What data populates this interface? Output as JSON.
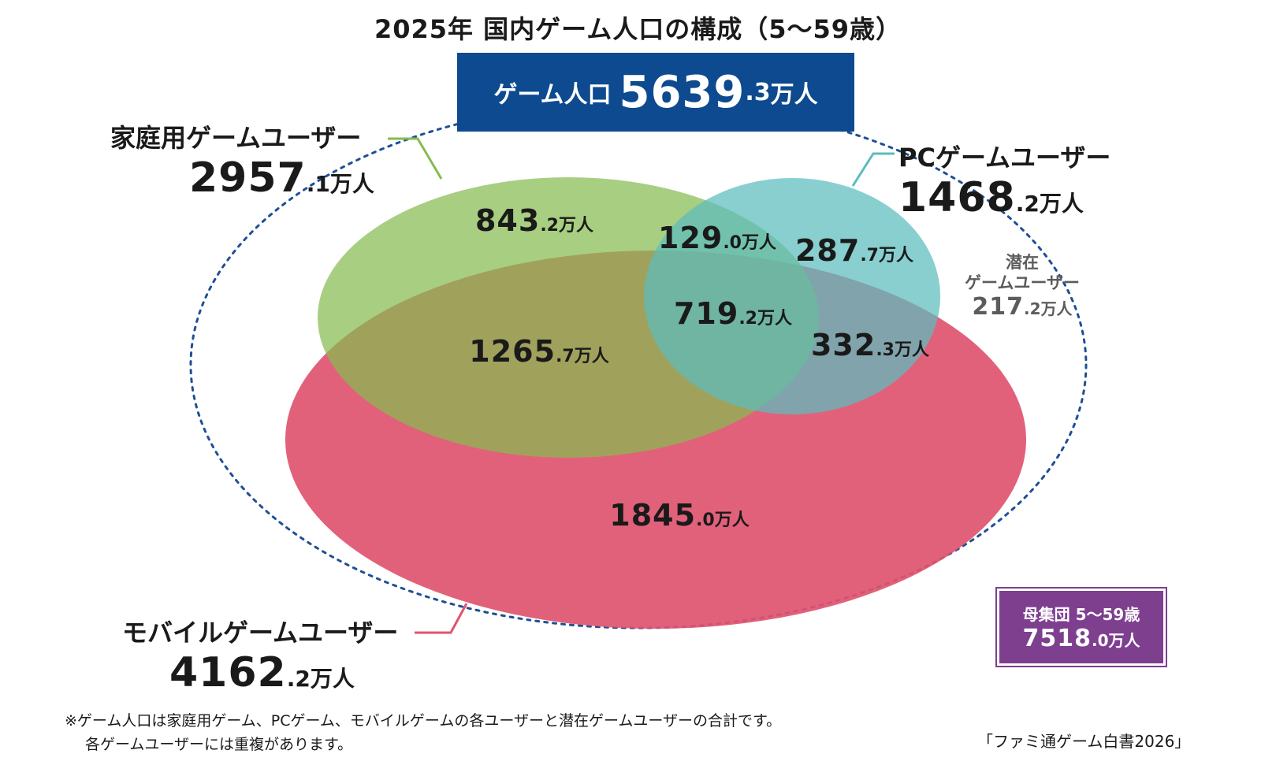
{
  "chart_data": {
    "type": "venn",
    "title": "2025年 国内ゲーム人口の構成（5〜59歳）",
    "unit": "万人",
    "total": {
      "label": "ゲーム人口",
      "value": 5639.3
    },
    "population": {
      "label": "母集団 5〜59歳",
      "value": 7518.0
    },
    "sets": [
      {
        "name": "家庭用ゲームユーザー",
        "value": 2957.1,
        "color": "#86bb50"
      },
      {
        "name": "PCゲームユーザー",
        "value": 1468.2,
        "color": "#5bbcbe"
      },
      {
        "name": "モバイルゲームユーザー",
        "value": 4162.2,
        "color": "#e0546f"
      }
    ],
    "regions": [
      {
        "sets": [
          "家庭用"
        ],
        "value": 843.2
      },
      {
        "sets": [
          "家庭用",
          "PC"
        ],
        "value": 129.0
      },
      {
        "sets": [
          "PC"
        ],
        "value": 287.7
      },
      {
        "sets": [
          "家庭用",
          "PC",
          "モバイル"
        ],
        "value": 719.2
      },
      {
        "sets": [
          "家庭用",
          "モバイル"
        ],
        "value": 1265.7
      },
      {
        "sets": [
          "PC",
          "モバイル"
        ],
        "value": 332.3
      },
      {
        "sets": [
          "モバイル"
        ],
        "value": 1845.0
      }
    ],
    "latent": {
      "label_line1": "潜在",
      "label_line2": "ゲームユーザー",
      "value": 217.2
    }
  },
  "labels": {
    "banner": "ゲーム人口",
    "console_name": "家庭用ゲームユーザー",
    "pc_name": "PCゲームユーザー",
    "mobile_name": "モバイルゲームユーザー",
    "pop_label": "母集団 5〜59歳",
    "note_line1": "※ゲーム人口は家庭用ゲーム、PCゲーム、モバイルゲームの各ユーザーと潜在ゲームユーザーの合計です。",
    "note_line2": "各ゲームユーザーには重複があります。",
    "source": "「ファミ通ゲーム白書2026」",
    "unit": "万人"
  },
  "colors": {
    "banner": "#0d4a8f",
    "popbox": "#7e3f8f",
    "dotted": "#1f4f95"
  }
}
